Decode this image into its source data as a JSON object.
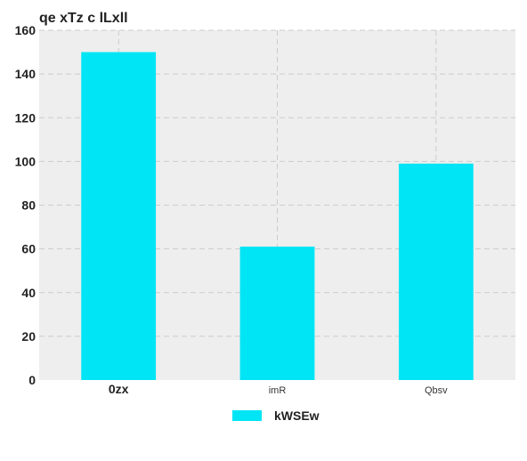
{
  "chart_data": {
    "type": "bar",
    "title": "qe xTz c lLxll",
    "categories": [
      "0zx",
      "imR",
      "Qbsv"
    ],
    "series": [
      {
        "name": "kWSEw",
        "values": [
          150,
          61,
          99
        ],
        "color": "#00e5f5"
      }
    ],
    "xlabel": "",
    "ylabel": "",
    "ylim": [
      0,
      160
    ],
    "yticks": [
      0,
      20,
      40,
      60,
      80,
      100,
      120,
      140,
      160
    ],
    "grid": true,
    "legend_position": "bottom-center",
    "background_color": "#eeeeee",
    "grid_color": "#cccccc"
  }
}
